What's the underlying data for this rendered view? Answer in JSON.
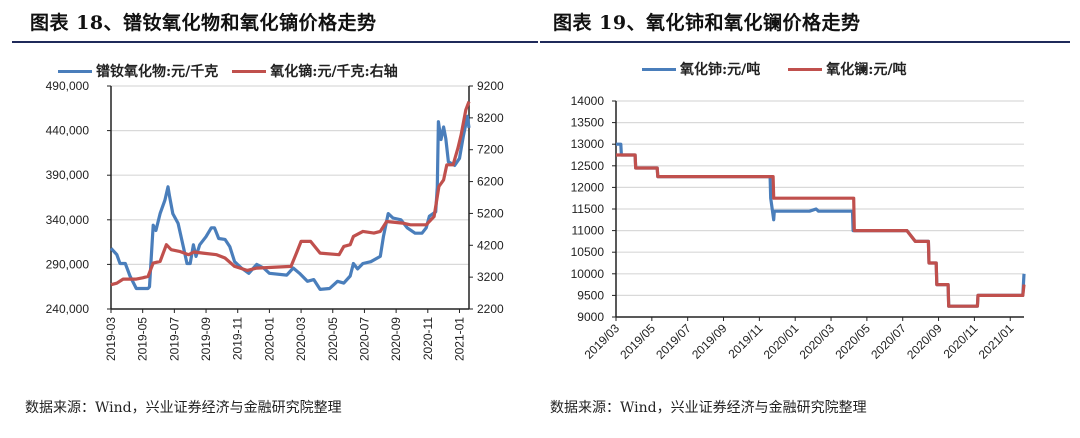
{
  "left": {
    "title": "图表 18、镨钕氧化物和氧化镝价格走势",
    "source": "数据来源：Wind，兴业证券经济与金融研究院整理"
  },
  "right": {
    "title": "图表 19、氧化铈和氧化镧价格走势",
    "source": "数据来源：Wind，兴业证券经济与金融研究院整理"
  },
  "chart_data": [
    {
      "type": "line",
      "title": "图表 18、镨钕氧化物和氧化镝价格走势",
      "grid": true,
      "legend_placement": "top",
      "x_tick_labels": [
        "2019-03",
        "2019-05",
        "2019-07",
        "2019-09",
        "2019-11",
        "2020-01",
        "2020-03",
        "2020-05",
        "2020-07",
        "2020-09",
        "2020-11",
        "2021-01"
      ],
      "y_left": {
        "ylim": [
          240000,
          490000
        ],
        "ticks": [
          "240,000",
          "290,000",
          "340,000",
          "390,000",
          "440,000",
          "490,000"
        ]
      },
      "y_right": {
        "ylim": [
          2200,
          9200
        ],
        "ticks": [
          "2200",
          "3200",
          "4200",
          "5200",
          "6200",
          "7200",
          "8200",
          "9200"
        ]
      },
      "series": [
        {
          "name": "镨钕氧化物:元/千克",
          "axis": "left",
          "color": "#4a7ebb",
          "points": [
            [
              "2019-03-01",
              308000
            ],
            [
              "2019-03-12",
              301000
            ],
            [
              "2019-03-18",
              291000
            ],
            [
              "2019-03-28",
              291000
            ],
            [
              "2019-04-07",
              277000
            ],
            [
              "2019-04-19",
              263000
            ],
            [
              "2019-05-11",
              263000
            ],
            [
              "2019-05-14",
              265000
            ],
            [
              "2019-05-21",
              334000
            ],
            [
              "2019-05-26",
              328000
            ],
            [
              "2019-06-04",
              347000
            ],
            [
              "2019-06-13",
              362000
            ],
            [
              "2019-06-19",
              377000
            ],
            [
              "2019-06-22",
              366000
            ],
            [
              "2019-06-28",
              347000
            ],
            [
              "2019-07-08",
              336000
            ],
            [
              "2019-07-18",
              310000
            ],
            [
              "2019-07-25",
              291000
            ],
            [
              "2019-08-01",
              291000
            ],
            [
              "2019-08-07",
              312000
            ],
            [
              "2019-08-12",
              299000
            ],
            [
              "2019-08-19",
              312000
            ],
            [
              "2019-09-01",
              321000
            ],
            [
              "2019-09-11",
              331000
            ],
            [
              "2019-09-17",
              331000
            ],
            [
              "2019-09-25",
              319000
            ],
            [
              "2019-10-07",
              318000
            ],
            [
              "2019-10-16",
              310000
            ],
            [
              "2019-10-25",
              293000
            ],
            [
              "2019-11-08",
              286000
            ],
            [
              "2019-11-22",
              280000
            ],
            [
              "2019-12-07",
              290000
            ],
            [
              "2019-12-20",
              286000
            ],
            [
              "2020-01-01",
              280000
            ],
            [
              "2020-02-04",
              278000
            ],
            [
              "2020-02-16",
              286000
            ],
            [
              "2020-02-28",
              280000
            ],
            [
              "2020-03-13",
              271000
            ],
            [
              "2020-03-25",
              273000
            ],
            [
              "2020-04-07",
              262000
            ],
            [
              "2020-04-25",
              263000
            ],
            [
              "2020-05-10",
              271000
            ],
            [
              "2020-05-22",
              269000
            ],
            [
              "2020-06-04",
              277000
            ],
            [
              "2020-06-10",
              291000
            ],
            [
              "2020-06-18",
              285000
            ],
            [
              "2020-06-28",
              291000
            ],
            [
              "2020-07-13",
              293000
            ],
            [
              "2020-08-01",
              299000
            ],
            [
              "2020-08-07",
              321000
            ],
            [
              "2020-08-16",
              347000
            ],
            [
              "2020-08-25",
              342000
            ],
            [
              "2020-09-10",
              340000
            ],
            [
              "2020-09-22",
              331000
            ],
            [
              "2020-10-07",
              325000
            ],
            [
              "2020-10-20",
              325000
            ],
            [
              "2020-10-28",
              331000
            ],
            [
              "2020-11-04",
              344000
            ],
            [
              "2020-11-16",
              349000
            ],
            [
              "2020-11-19",
              377000
            ],
            [
              "2020-11-21",
              450000
            ],
            [
              "2020-11-26",
              430000
            ],
            [
              "2020-12-01",
              444000
            ],
            [
              "2020-12-05",
              431000
            ],
            [
              "2020-12-10",
              405000
            ],
            [
              "2020-12-22",
              401000
            ],
            [
              "2021-01-01",
              409000
            ],
            [
              "2021-01-08",
              433000
            ],
            [
              "2021-01-16",
              456000
            ],
            [
              "2021-01-19",
              443000
            ]
          ]
        },
        {
          "name": "氧化镝:元/千克:右轴",
          "axis": "right",
          "color": "#c0504d",
          "points": [
            [
              "2019-03-01",
              2963
            ],
            [
              "2019-03-12",
              3010
            ],
            [
              "2019-03-24",
              3140
            ],
            [
              "2019-04-19",
              3140
            ],
            [
              "2019-05-01",
              3180
            ],
            [
              "2019-05-11",
              3224
            ],
            [
              "2019-05-21",
              3642
            ],
            [
              "2019-06-04",
              3694
            ],
            [
              "2019-06-16",
              4217
            ],
            [
              "2019-06-25",
              4060
            ],
            [
              "2019-07-11",
              4008
            ],
            [
              "2019-07-28",
              3903
            ],
            [
              "2019-08-08",
              3990
            ],
            [
              "2019-08-25",
              3955
            ],
            [
              "2019-09-21",
              3903
            ],
            [
              "2019-10-07",
              3800
            ],
            [
              "2019-10-25",
              3537
            ],
            [
              "2019-11-19",
              3412
            ],
            [
              "2019-12-07",
              3485
            ],
            [
              "2020-02-12",
              3537
            ],
            [
              "2020-02-21",
              3903
            ],
            [
              "2020-03-01",
              4321
            ],
            [
              "2020-03-19",
              4321
            ],
            [
              "2020-04-07",
              3955
            ],
            [
              "2020-05-13",
              3903
            ],
            [
              "2020-05-22",
              4165
            ],
            [
              "2020-06-04",
              4217
            ],
            [
              "2020-06-10",
              4478
            ],
            [
              "2020-06-28",
              4635
            ],
            [
              "2020-07-19",
              4582
            ],
            [
              "2020-08-01",
              4635
            ],
            [
              "2020-08-13",
              4948
            ],
            [
              "2020-09-13",
              4896
            ],
            [
              "2020-09-28",
              4844
            ],
            [
              "2020-10-28",
              4844
            ],
            [
              "2020-11-13",
              5105
            ],
            [
              "2020-11-22",
              6045
            ],
            [
              "2020-12-01",
              6254
            ],
            [
              "2020-12-07",
              6725
            ],
            [
              "2020-12-19",
              6725
            ],
            [
              "2020-12-28",
              7247
            ],
            [
              "2021-01-04",
              7665
            ],
            [
              "2021-01-13",
              8450
            ],
            [
              "2021-01-19",
              8710
            ]
          ]
        }
      ]
    },
    {
      "type": "line",
      "title": "图表 19、氧化铈和氧化镧价格走势",
      "grid": true,
      "legend_placement": "top",
      "x_tick_labels": [
        "2019/03",
        "2019/05",
        "2019/07",
        "2019/09",
        "2019/11",
        "2020/01",
        "2020/03",
        "2020/05",
        "2020/07",
        "2020/09",
        "2020/11",
        "2021/01"
      ],
      "y_left": {
        "ylim": [
          9000,
          14000
        ],
        "ticks": [
          "9000",
          "9500",
          "10000",
          "10500",
          "11000",
          "11500",
          "12000",
          "12500",
          "13000",
          "13500",
          "14000"
        ]
      },
      "series": [
        {
          "name": "氧化铈:元/吨",
          "axis": "left",
          "color": "#4a7ebb",
          "points": [
            [
              "2019-03-01",
              13000
            ],
            [
              "2019-03-09",
              13000
            ],
            [
              "2019-03-10",
              12750
            ],
            [
              "2019-04-03",
              12750
            ],
            [
              "2019-04-04",
              12450
            ],
            [
              "2019-05-10",
              12450
            ],
            [
              "2019-05-11",
              12250
            ],
            [
              "2019-11-19",
              12250
            ],
            [
              "2019-11-20",
              11750
            ],
            [
              "2019-11-25",
              11250
            ],
            [
              "2019-11-26",
              11450
            ],
            [
              "2020-01-25",
              11450
            ],
            [
              "2020-02-06",
              11500
            ],
            [
              "2020-02-10",
              11450
            ],
            [
              "2020-04-07",
              11450
            ],
            [
              "2020-04-08",
              11000
            ],
            [
              "2020-07-08",
              11000
            ],
            [
              "2020-07-22",
              10750
            ],
            [
              "2020-08-14",
              10750
            ],
            [
              "2020-08-15",
              10250
            ],
            [
              "2020-08-27",
              10250
            ],
            [
              "2020-08-28",
              9750
            ],
            [
              "2020-09-17",
              9750
            ],
            [
              "2020-09-18",
              9250
            ],
            [
              "2020-11-06",
              9250
            ],
            [
              "2020-11-07",
              9500
            ],
            [
              "2021-01-22",
              9500
            ],
            [
              "2021-01-24",
              10000
            ]
          ]
        },
        {
          "name": "氧化镧:元/吨",
          "axis": "left",
          "color": "#c0504d",
          "points": [
            [
              "2019-03-01",
              12750
            ],
            [
              "2019-04-03",
              12750
            ],
            [
              "2019-04-04",
              12450
            ],
            [
              "2019-05-10",
              12450
            ],
            [
              "2019-05-11",
              12250
            ],
            [
              "2019-11-24",
              12250
            ],
            [
              "2019-11-25",
              11750
            ],
            [
              "2020-04-09",
              11750
            ],
            [
              "2020-04-10",
              11000
            ],
            [
              "2020-07-08",
              11000
            ],
            [
              "2020-07-22",
              10750
            ],
            [
              "2020-08-14",
              10750
            ],
            [
              "2020-08-15",
              10250
            ],
            [
              "2020-08-27",
              10250
            ],
            [
              "2020-08-28",
              9750
            ],
            [
              "2020-09-17",
              9750
            ],
            [
              "2020-09-18",
              9250
            ],
            [
              "2020-11-06",
              9250
            ],
            [
              "2020-11-07",
              9500
            ],
            [
              "2021-01-22",
              9500
            ],
            [
              "2021-01-24",
              9750
            ]
          ]
        }
      ]
    }
  ]
}
